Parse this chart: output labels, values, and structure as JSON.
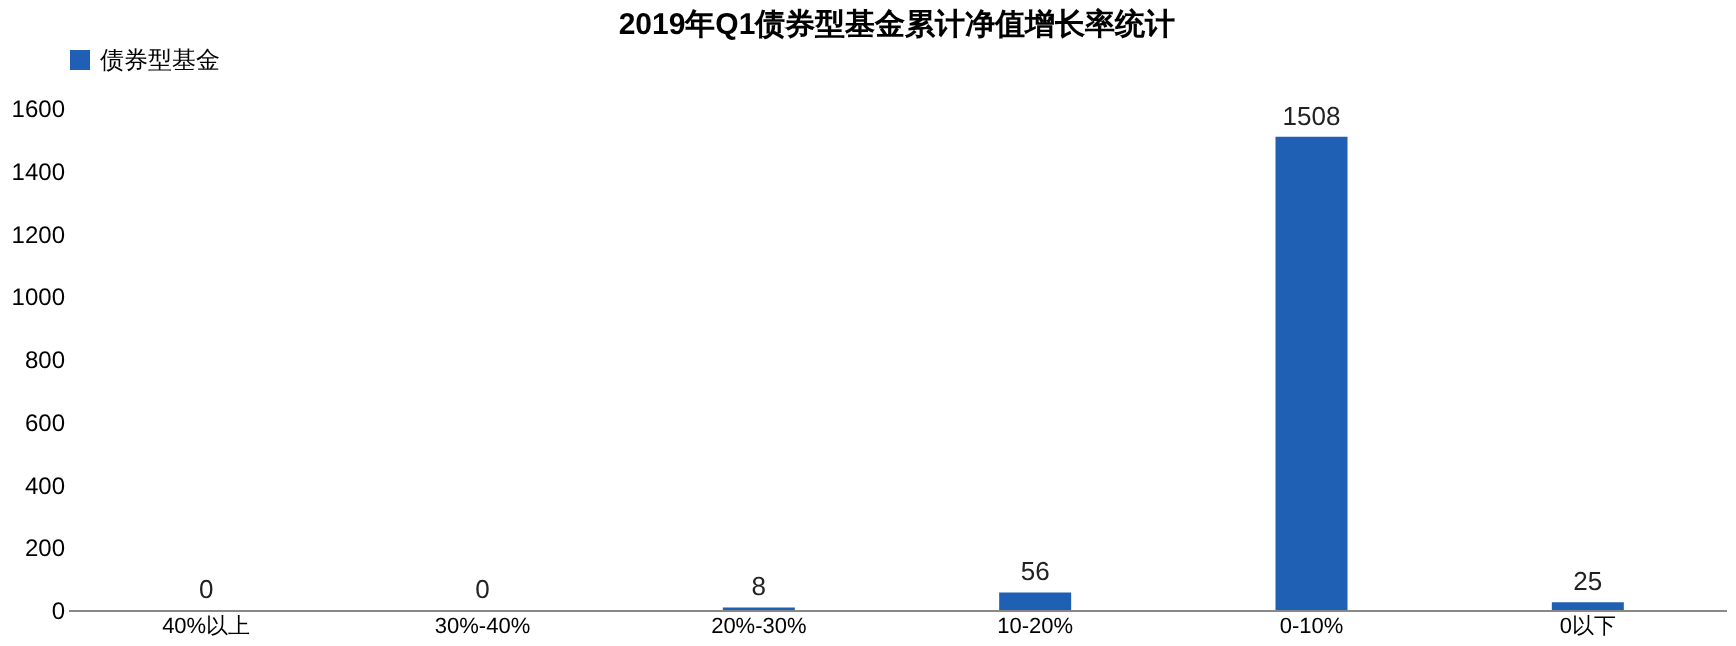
{
  "chart_data": {
    "type": "bar",
    "title": "2019年Q1债券型基金累计净值增长率统计",
    "categories": [
      "40%以上",
      "30%-40%",
      "20%-30%",
      "10-20%",
      "0-10%",
      "0以下"
    ],
    "series": [
      {
        "name": "债券型基金",
        "color": "#1f5fb4",
        "values": [
          0,
          0,
          8,
          56,
          1508,
          25
        ]
      }
    ],
    "ylim": [
      0,
      1600
    ],
    "yticks": [
      0,
      200,
      400,
      600,
      800,
      1000,
      1200,
      1400,
      1600
    ],
    "data_labels": true,
    "grid": false,
    "legend": "top"
  }
}
